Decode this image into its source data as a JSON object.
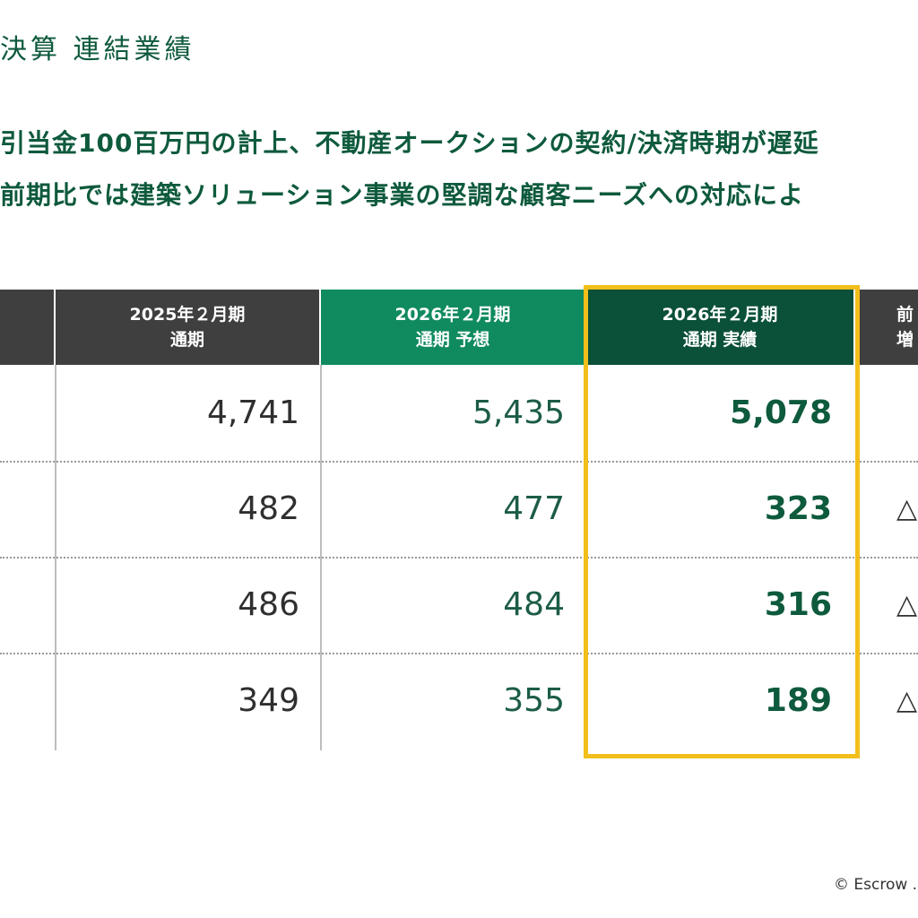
{
  "title": "決算 連結業績",
  "description": [
    "引当金100百万円の計上、不動産オークションの契約/決済時期が遅延",
    "前期比では建築ソリューション事業の堅調な顧客ニーズへの対応によ"
  ],
  "table": {
    "headers": {
      "fy2025": [
        "2025年２月期",
        "通期"
      ],
      "fy2026_forecast": [
        "2026年２月期",
        "通期 予想"
      ],
      "fy2026_actual": [
        "2026年２月期",
        "通期 実績"
      ],
      "change": [
        "前",
        "増"
      ]
    },
    "rows": [
      {
        "fy2025": "4,741",
        "forecast": "5,435",
        "actual": "5,078",
        "change": ""
      },
      {
        "fy2025": "482",
        "forecast": "477",
        "actual": "323",
        "change": "△"
      },
      {
        "fy2025": "486",
        "forecast": "484",
        "actual": "316",
        "change": "△"
      },
      {
        "fy2025": "349",
        "forecast": "355",
        "actual": "189",
        "change": "△"
      }
    ],
    "highlight_color": "#f2be1a"
  },
  "footer": {
    "copyright": "© Escrow ."
  },
  "colors": {
    "brand_green": "#0e5a3c",
    "forecast_header": "#108a5f",
    "actual_header": "#0b5038",
    "dark_header": "#3f3f3f"
  }
}
